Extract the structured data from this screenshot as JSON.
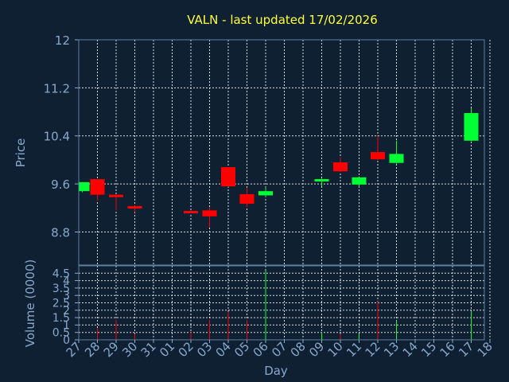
{
  "chart_data": [
    {
      "type": "candlestick",
      "title": "VALN - last updated 17/02/2026",
      "ylabel": "Price",
      "ylim": [
        8.25,
        12.0
      ],
      "yticks": [
        "12",
        "11.2",
        "10.4",
        "9.6",
        "8.8"
      ],
      "ytick_values": [
        12.0,
        11.2,
        10.4,
        9.6,
        8.8
      ],
      "grid": true,
      "categories": [
        "27",
        "28",
        "29",
        "30",
        "31",
        "01",
        "02",
        "03",
        "04",
        "05",
        "06",
        "07",
        "08",
        "09",
        "10",
        "11",
        "12",
        "13",
        "14",
        "15",
        "16",
        "17",
        "18"
      ],
      "candles": [
        {
          "day": "27",
          "open": 9.48,
          "high": 9.63,
          "low": 9.46,
          "close": 9.63,
          "direction": "up"
        },
        {
          "day": "28",
          "open": 9.68,
          "high": 9.68,
          "low": 9.32,
          "close": 9.42,
          "direction": "down"
        },
        {
          "day": "29",
          "open": 9.42,
          "high": 9.42,
          "low": 9.16,
          "close": 9.38,
          "direction": "down"
        },
        {
          "day": "30",
          "open": 9.23,
          "high": 9.24,
          "low": 9.13,
          "close": 9.19,
          "direction": "down"
        },
        {
          "day": "02",
          "open": 9.15,
          "high": 9.16,
          "low": 9.14,
          "close": 9.15,
          "direction": "down"
        },
        {
          "day": "03",
          "open": 9.16,
          "high": 9.21,
          "low": 8.88,
          "close": 9.06,
          "direction": "down"
        },
        {
          "day": "04",
          "open": 9.88,
          "high": 9.88,
          "low": 9.55,
          "close": 9.56,
          "direction": "down"
        },
        {
          "day": "05",
          "open": 9.43,
          "high": 9.54,
          "low": 9.21,
          "close": 9.27,
          "direction": "down"
        },
        {
          "day": "06",
          "open": 9.41,
          "high": 9.55,
          "low": 9.38,
          "close": 9.48,
          "direction": "up"
        },
        {
          "day": "09",
          "open": 9.65,
          "high": 9.69,
          "low": 9.56,
          "close": 9.68,
          "direction": "up"
        },
        {
          "day": "10",
          "open": 9.96,
          "high": 10.04,
          "low": 9.8,
          "close": 9.81,
          "direction": "down"
        },
        {
          "day": "11",
          "open": 9.59,
          "high": 9.71,
          "low": 9.55,
          "close": 9.71,
          "direction": "up"
        },
        {
          "day": "12",
          "open": 10.13,
          "high": 10.4,
          "low": 10.0,
          "close": 10.01,
          "direction": "down"
        },
        {
          "day": "13",
          "open": 9.95,
          "high": 10.32,
          "low": 9.94,
          "close": 10.1,
          "direction": "up"
        },
        {
          "day": "17",
          "open": 10.32,
          "high": 10.86,
          "low": 10.31,
          "close": 10.78,
          "direction": "up"
        }
      ]
    },
    {
      "type": "bar",
      "ylabel": "Volume (0000)",
      "xlabel": "Day",
      "ylim": [
        0,
        5
      ],
      "yticks": [
        "4.5",
        "4",
        "3.5",
        "3",
        "2.5",
        "2",
        "1.5",
        "1",
        "0.5",
        "0"
      ],
      "ytick_values": [
        4.5,
        4.0,
        3.5,
        3.0,
        2.5,
        2.0,
        1.5,
        1.0,
        0.5,
        0.0
      ],
      "grid": true,
      "categories": [
        "27",
        "28",
        "29",
        "30",
        "31",
        "01",
        "02",
        "03",
        "04",
        "05",
        "06",
        "07",
        "08",
        "09",
        "10",
        "11",
        "12",
        "13",
        "14",
        "15",
        "16",
        "17",
        "18"
      ],
      "bars": [
        {
          "day": "28",
          "value": 0.8,
          "direction": "down"
        },
        {
          "day": "29",
          "value": 1.35,
          "direction": "down"
        },
        {
          "day": "30",
          "value": 0.4,
          "direction": "down"
        },
        {
          "day": "02",
          "value": 0.55,
          "direction": "down"
        },
        {
          "day": "03",
          "value": 1.35,
          "direction": "down"
        },
        {
          "day": "04",
          "value": 1.9,
          "direction": "down"
        },
        {
          "day": "05",
          "value": 1.35,
          "direction": "down"
        },
        {
          "day": "06",
          "value": 4.7,
          "direction": "up"
        },
        {
          "day": "09",
          "value": 0.5,
          "direction": "up"
        },
        {
          "day": "10",
          "value": 0.4,
          "direction": "down"
        },
        {
          "day": "11",
          "value": 0.4,
          "direction": "up"
        },
        {
          "day": "12",
          "value": 2.6,
          "direction": "down"
        },
        {
          "day": "13",
          "value": 1.3,
          "direction": "up"
        },
        {
          "day": "17",
          "value": 1.95,
          "direction": "up"
        }
      ]
    }
  ],
  "colors": {
    "background": "#0f2033",
    "title": "#ffff33",
    "axis_text": "#87a9cc",
    "frame": "#5f7f9f",
    "grid": "#ffffff",
    "up": "#00ff33",
    "down": "#ff0000"
  }
}
